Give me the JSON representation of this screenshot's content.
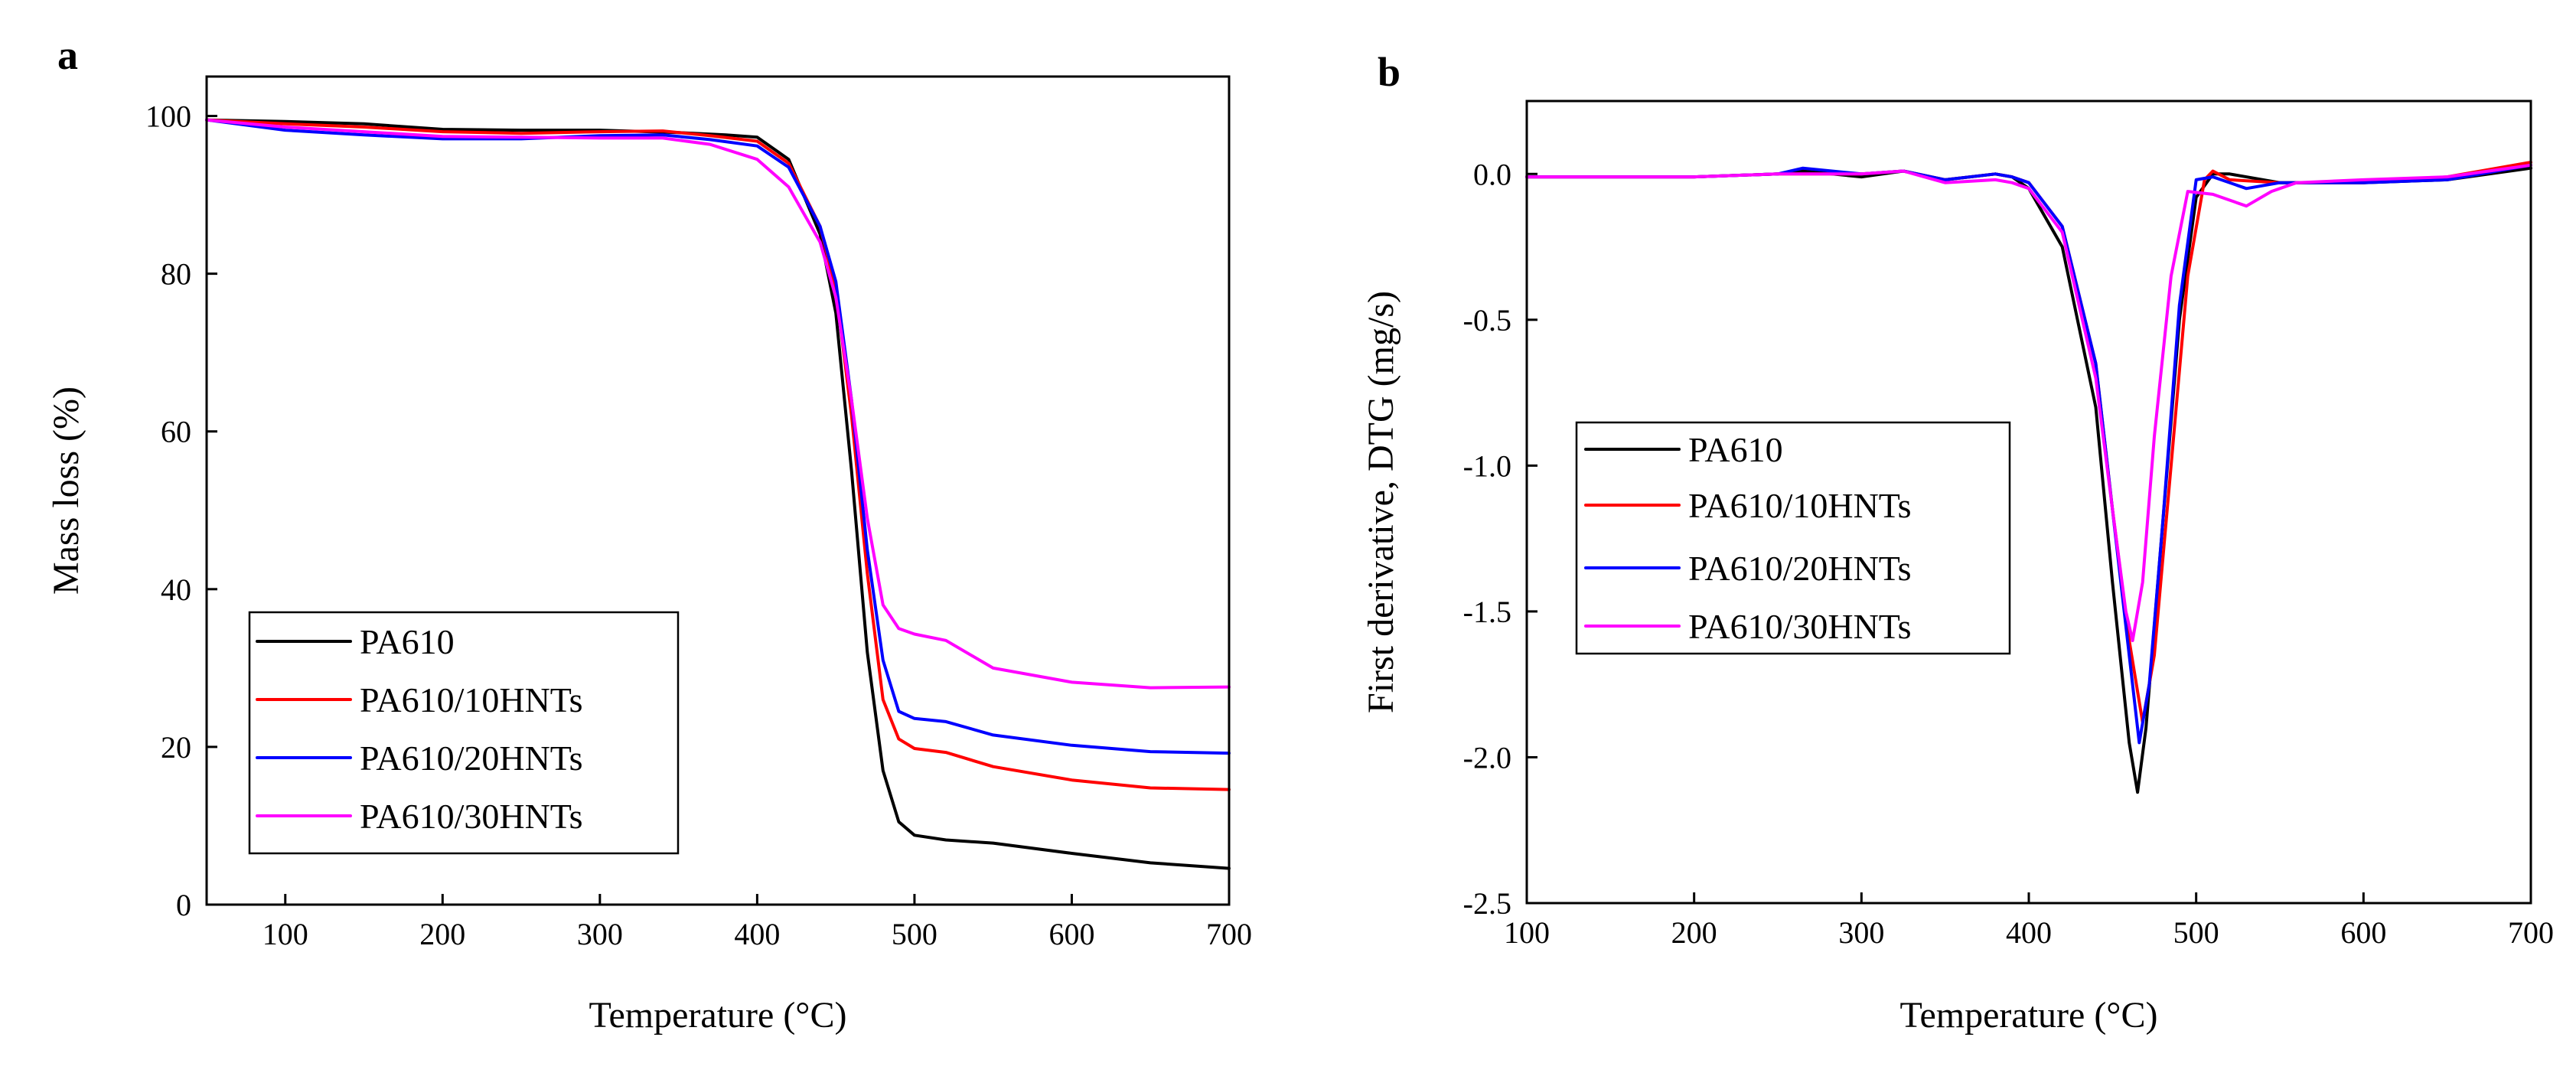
{
  "chart_data": [
    {
      "type": "line",
      "panel_label": "a",
      "xlabel": "Temperature (°C)",
      "ylabel": "Mass loss (%)",
      "xlim": [
        50,
        700
      ],
      "ylim": [
        0,
        105
      ],
      "xticks": [
        100,
        200,
        300,
        400,
        500,
        600,
        700
      ],
      "yticks": [
        0,
        20,
        40,
        60,
        80,
        100
      ],
      "legend_position": "bottom-left",
      "series": [
        {
          "name": "PA610",
          "color": "#000000",
          "points": [
            [
              50,
              99.5
            ],
            [
              100,
              99.3
            ],
            [
              150,
              99.0
            ],
            [
              200,
              98.3
            ],
            [
              250,
              98.2
            ],
            [
              300,
              98.2
            ],
            [
              350,
              97.9
            ],
            [
              380,
              97.6
            ],
            [
              400,
              97.3
            ],
            [
              420,
              94.5
            ],
            [
              440,
              85
            ],
            [
              450,
              75
            ],
            [
              460,
              55
            ],
            [
              470,
              32
            ],
            [
              480,
              17
            ],
            [
              490,
              10.5
            ],
            [
              500,
              8.8
            ],
            [
              520,
              8.2
            ],
            [
              550,
              7.8
            ],
            [
              600,
              6.5
            ],
            [
              650,
              5.3
            ],
            [
              700,
              4.6
            ]
          ]
        },
        {
          "name": "PA610/10HNTs",
          "color": "#ff0000",
          "points": [
            [
              50,
              99.5
            ],
            [
              100,
              99.0
            ],
            [
              150,
              98.6
            ],
            [
              200,
              98.0
            ],
            [
              250,
              97.8
            ],
            [
              300,
              98.0
            ],
            [
              340,
              98.1
            ],
            [
              370,
              97.5
            ],
            [
              400,
              96.8
            ],
            [
              420,
              94.0
            ],
            [
              440,
              86
            ],
            [
              450,
              78
            ],
            [
              460,
              62
            ],
            [
              470,
              42
            ],
            [
              480,
              26
            ],
            [
              490,
              21
            ],
            [
              500,
              19.8
            ],
            [
              520,
              19.3
            ],
            [
              550,
              17.5
            ],
            [
              600,
              15.8
            ],
            [
              650,
              14.8
            ],
            [
              700,
              14.6
            ]
          ]
        },
        {
          "name": "PA610/20HNTs",
          "color": "#0000ff",
          "points": [
            [
              50,
              99.5
            ],
            [
              100,
              98.2
            ],
            [
              150,
              97.6
            ],
            [
              200,
              97.1
            ],
            [
              250,
              97.1
            ],
            [
              300,
              97.5
            ],
            [
              340,
              97.6
            ],
            [
              370,
              97.0
            ],
            [
              400,
              96.2
            ],
            [
              420,
              93.5
            ],
            [
              440,
              86
            ],
            [
              450,
              79
            ],
            [
              460,
              64
            ],
            [
              470,
              45
            ],
            [
              480,
              31
            ],
            [
              490,
              24.5
            ],
            [
              500,
              23.6
            ],
            [
              520,
              23.2
            ],
            [
              550,
              21.5
            ],
            [
              600,
              20.2
            ],
            [
              650,
              19.4
            ],
            [
              700,
              19.2
            ]
          ]
        },
        {
          "name": "PA610/30HNTs",
          "color": "#ff00ff",
          "points": [
            [
              50,
              99.5
            ],
            [
              100,
              98.6
            ],
            [
              150,
              98.0
            ],
            [
              200,
              97.4
            ],
            [
              250,
              97.3
            ],
            [
              300,
              97.2
            ],
            [
              340,
              97.2
            ],
            [
              370,
              96.4
            ],
            [
              400,
              94.5
            ],
            [
              420,
              91.0
            ],
            [
              440,
              84
            ],
            [
              450,
              77
            ],
            [
              460,
              64
            ],
            [
              470,
              49
            ],
            [
              480,
              38
            ],
            [
              490,
              35
            ],
            [
              500,
              34.3
            ],
            [
              520,
              33.5
            ],
            [
              550,
              30.0
            ],
            [
              600,
              28.2
            ],
            [
              650,
              27.5
            ],
            [
              700,
              27.6
            ]
          ]
        }
      ],
      "legend": [
        "PA610",
        "PA610/10HNTs",
        "PA610/20HNTs",
        "PA610/30HNTs"
      ]
    },
    {
      "type": "line",
      "panel_label": "b",
      "xlabel": "Temperature (°C)",
      "ylabel": "First derivative, DTG (mg/s)",
      "xlim": [
        100,
        700
      ],
      "ylim": [
        -2.5,
        0.25
      ],
      "xticks": [
        100,
        200,
        300,
        400,
        500,
        600,
        700
      ],
      "yticks": [
        -2.5,
        -2.0,
        -1.5,
        -1.0,
        -0.5,
        0.0
      ],
      "ytick_labels": [
        "-2.5",
        "-2.0",
        "-1.5",
        "-1.0",
        "-0.5",
        "0.0"
      ],
      "legend_position": "center-left",
      "series": [
        {
          "name": "PA610",
          "color": "#000000",
          "points": [
            [
              100,
              -0.01
            ],
            [
              150,
              -0.01
            ],
            [
              200,
              -0.01
            ],
            [
              250,
              0.0
            ],
            [
              265,
              0.01
            ],
            [
              300,
              -0.01
            ],
            [
              325,
              0.01
            ],
            [
              350,
              -0.02
            ],
            [
              380,
              0.0
            ],
            [
              390,
              -0.01
            ],
            [
              400,
              -0.05
            ],
            [
              420,
              -0.25
            ],
            [
              440,
              -0.8
            ],
            [
              450,
              -1.4
            ],
            [
              460,
              -1.95
            ],
            [
              465,
              -2.12
            ],
            [
              470,
              -1.9
            ],
            [
              480,
              -1.2
            ],
            [
              490,
              -0.5
            ],
            [
              500,
              -0.08
            ],
            [
              510,
              0.0
            ],
            [
              520,
              0.0
            ],
            [
              550,
              -0.03
            ],
            [
              600,
              -0.03
            ],
            [
              650,
              -0.02
            ],
            [
              700,
              0.02
            ]
          ]
        },
        {
          "name": "PA610/10HNTs",
          "color": "#ff0000",
          "points": [
            [
              100,
              -0.01
            ],
            [
              150,
              -0.01
            ],
            [
              200,
              -0.01
            ],
            [
              250,
              0.0
            ],
            [
              300,
              0.0
            ],
            [
              325,
              0.01
            ],
            [
              350,
              -0.02
            ],
            [
              380,
              0.0
            ],
            [
              390,
              -0.01
            ],
            [
              400,
              -0.03
            ],
            [
              420,
              -0.18
            ],
            [
              440,
              -0.65
            ],
            [
              450,
              -1.15
            ],
            [
              460,
              -1.6
            ],
            [
              468,
              -1.88
            ],
            [
              475,
              -1.65
            ],
            [
              485,
              -1.0
            ],
            [
              495,
              -0.35
            ],
            [
              505,
              -0.02
            ],
            [
              510,
              0.01
            ],
            [
              520,
              -0.02
            ],
            [
              550,
              -0.03
            ],
            [
              600,
              -0.03
            ],
            [
              650,
              -0.01
            ],
            [
              700,
              0.04
            ]
          ]
        },
        {
          "name": "PA610/20HNTs",
          "color": "#0000ff",
          "points": [
            [
              100,
              -0.01
            ],
            [
              150,
              -0.01
            ],
            [
              200,
              -0.01
            ],
            [
              250,
              0.0
            ],
            [
              265,
              0.02
            ],
            [
              300,
              0.0
            ],
            [
              325,
              0.01
            ],
            [
              350,
              -0.02
            ],
            [
              380,
              0.0
            ],
            [
              390,
              -0.01
            ],
            [
              400,
              -0.03
            ],
            [
              420,
              -0.18
            ],
            [
              440,
              -0.65
            ],
            [
              450,
              -1.15
            ],
            [
              460,
              -1.65
            ],
            [
              466,
              -1.95
            ],
            [
              472,
              -1.75
            ],
            [
              480,
              -1.2
            ],
            [
              490,
              -0.45
            ],
            [
              500,
              -0.02
            ],
            [
              510,
              -0.01
            ],
            [
              530,
              -0.05
            ],
            [
              550,
              -0.03
            ],
            [
              600,
              -0.03
            ],
            [
              650,
              -0.02
            ],
            [
              700,
              0.03
            ]
          ]
        },
        {
          "name": "PA610/30HNTs",
          "color": "#ff00ff",
          "points": [
            [
              100,
              -0.01
            ],
            [
              150,
              -0.01
            ],
            [
              200,
              -0.01
            ],
            [
              250,
              0.0
            ],
            [
              300,
              0.0
            ],
            [
              325,
              0.01
            ],
            [
              350,
              -0.03
            ],
            [
              380,
              -0.02
            ],
            [
              390,
              -0.03
            ],
            [
              400,
              -0.05
            ],
            [
              420,
              -0.2
            ],
            [
              440,
              -0.7
            ],
            [
              450,
              -1.15
            ],
            [
              458,
              -1.5
            ],
            [
              462,
              -1.6
            ],
            [
              468,
              -1.4
            ],
            [
              475,
              -0.9
            ],
            [
              485,
              -0.35
            ],
            [
              495,
              -0.06
            ],
            [
              510,
              -0.07
            ],
            [
              530,
              -0.11
            ],
            [
              545,
              -0.06
            ],
            [
              560,
              -0.03
            ],
            [
              600,
              -0.02
            ],
            [
              650,
              -0.01
            ],
            [
              700,
              0.03
            ]
          ]
        }
      ],
      "legend": [
        "PA610",
        "PA610/10HNTs",
        "PA610/20HNTs",
        "PA610/30HNTs"
      ]
    }
  ]
}
